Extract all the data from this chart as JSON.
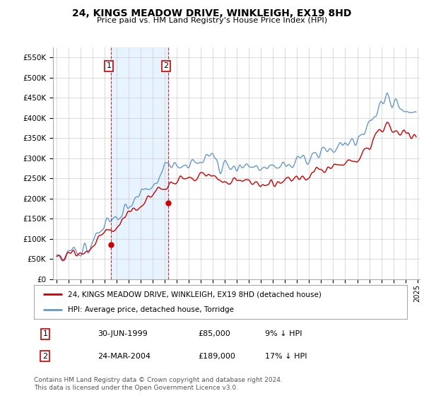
{
  "title": "24, KINGS MEADOW DRIVE, WINKLEIGH, EX19 8HD",
  "subtitle": "Price paid vs. HM Land Registry's House Price Index (HPI)",
  "legend_label_red": "24, KINGS MEADOW DRIVE, WINKLEIGH, EX19 8HD (detached house)",
  "legend_label_blue": "HPI: Average price, detached house, Torridge",
  "sale1_label": "1",
  "sale1_date": "30-JUN-1999",
  "sale1_price": "£85,000",
  "sale1_hpi": "9% ↓ HPI",
  "sale2_label": "2",
  "sale2_date": "24-MAR-2004",
  "sale2_price": "£189,000",
  "sale2_hpi": "17% ↓ HPI",
  "footnote": "Contains HM Land Registry data © Crown copyright and database right 2024.\nThis data is licensed under the Open Government Licence v3.0.",
  "ylim": [
    0,
    575000
  ],
  "yticks": [
    0,
    50000,
    100000,
    150000,
    200000,
    250000,
    300000,
    350000,
    400000,
    450000,
    500000,
    550000
  ],
  "bg_color": "#ffffff",
  "plot_bg": "#ffffff",
  "red_color": "#cc0000",
  "blue_color": "#6699cc",
  "sale1_t": 1999.5,
  "sale1_v": 85000,
  "sale2_t": 2004.25,
  "sale2_v": 189000,
  "shade_color": "#ddeeff"
}
